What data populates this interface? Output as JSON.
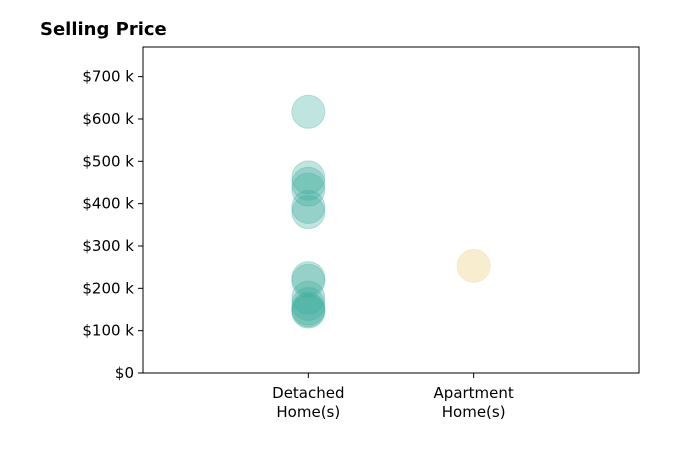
{
  "chart_data": {
    "type": "scatter",
    "title": "Selling Price",
    "xlabel": "",
    "ylabel": "",
    "categories": [
      "Detached\nHome(s)",
      "Apartment\nHome(s)"
    ],
    "y_ticks": [
      0,
      100000,
      200000,
      300000,
      400000,
      500000,
      600000,
      700000
    ],
    "y_tick_labels": [
      "$0",
      "$100 k",
      "$200 k",
      "$300 k",
      "$400 k",
      "$500 k",
      "$600 k",
      "$700 k"
    ],
    "ylim": [
      0,
      770000
    ],
    "xlim": [
      -1,
      2
    ],
    "grid": false,
    "series": [
      {
        "category": "Detached\nHome(s)",
        "color": "#3aab9c",
        "values": [
          617000,
          462000,
          447000,
          433000,
          392000,
          380000,
          224000,
          218000,
          178000,
          163000,
          152000,
          148000,
          145000
        ]
      },
      {
        "category": "Apartment\nHome(s)",
        "color": "#f3dfa6",
        "values": [
          253000
        ]
      }
    ]
  }
}
